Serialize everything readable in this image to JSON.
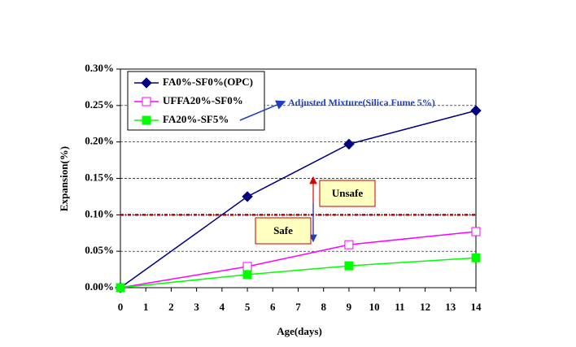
{
  "chart_data": {
    "type": "line",
    "xlabel": "Age(days)",
    "ylabel": "Expansion(%)",
    "xlim": [
      0,
      14
    ],
    "xticks": [
      0,
      1,
      2,
      3,
      4,
      5,
      6,
      7,
      8,
      9,
      10,
      11,
      12,
      13,
      14
    ],
    "ylim": [
      0,
      0.3
    ],
    "yticks": [
      {
        "value": 0,
        "label": "0.00%"
      },
      {
        "value": 0.05,
        "label": "0.05%"
      },
      {
        "value": 0.1,
        "label": "0.10%"
      },
      {
        "value": 0.15,
        "label": "0.15%"
      },
      {
        "value": 0.2,
        "label": "0.20%"
      },
      {
        "value": 0.25,
        "label": "0.25%"
      },
      {
        "value": 0.3,
        "label": "0.30%"
      }
    ],
    "grid": true,
    "legend": "upper left",
    "x": [
      0,
      5,
      9,
      14
    ],
    "series": [
      {
        "name": "FA0%-SF0%(OPC)",
        "color": "#000080",
        "marker": "diamond",
        "values": [
          0,
          0.125,
          0.197,
          0.243
        ]
      },
      {
        "name": "UFFA20%-SF0%",
        "color": "#ff00ff",
        "marker": "open-square",
        "values": [
          0,
          0.029,
          0.059,
          0.077
        ]
      },
      {
        "name": "FA20%-SF5%",
        "color": "#00ff00",
        "marker": "square",
        "values": [
          0,
          0.018,
          0.03,
          0.041
        ]
      }
    ],
    "threshold": {
      "value": 0.1,
      "color": "#c00000"
    },
    "annotations": [
      "Adjusted Mixture(Silica Fume 5%)",
      "Unsafe",
      "Safe"
    ]
  }
}
